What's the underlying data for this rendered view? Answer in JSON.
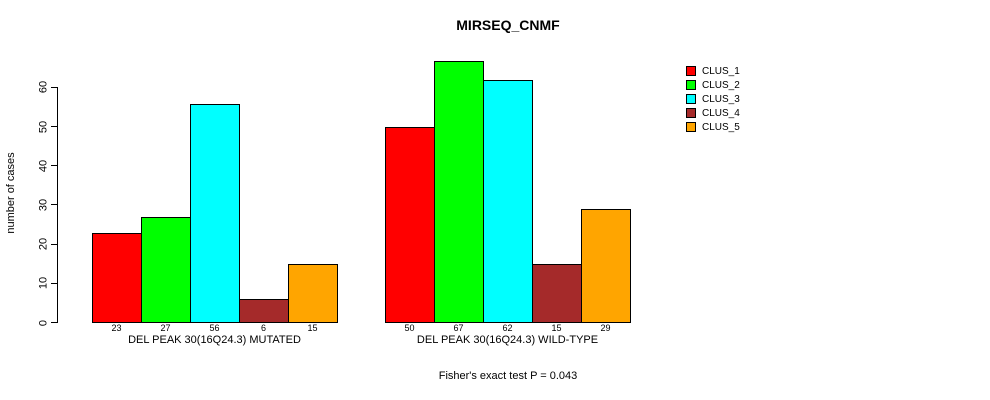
{
  "chart_data": {
    "type": "bar",
    "title": "MIRSEQ_CNMF",
    "ylabel": "number of cases",
    "xlabel": "",
    "ylim": [
      0,
      60
    ],
    "yticks": [
      0,
      10,
      20,
      30,
      40,
      50,
      60
    ],
    "grid": false,
    "legend_position": "right-top",
    "categories": [
      "DEL PEAK 30(16Q24.3) MUTATED",
      "DEL PEAK 30(16Q24.3) WILD-TYPE"
    ],
    "series": [
      {
        "name": "CLUS_1",
        "color": "#FF0000",
        "values": [
          23,
          50
        ]
      },
      {
        "name": "CLUS_2",
        "color": "#00FF00",
        "values": [
          27,
          67
        ]
      },
      {
        "name": "CLUS_3",
        "color": "#00FFFF",
        "values": [
          56,
          62
        ]
      },
      {
        "name": "CLUS_4",
        "color": "#A52A2A",
        "values": [
          6,
          15
        ]
      },
      {
        "name": "CLUS_5",
        "color": "#FFA500",
        "values": [
          15,
          29
        ]
      }
    ],
    "bar_value_labels": [
      [
        "23",
        "27",
        "56",
        "6",
        "15"
      ],
      [
        "50",
        "67",
        "62",
        "15",
        "29"
      ]
    ],
    "annotation": "Fisher's exact test P = 0.043",
    "axis_color": "#000000",
    "bar_border_color": "#000000",
    "background_color": "#FFFFFF"
  }
}
